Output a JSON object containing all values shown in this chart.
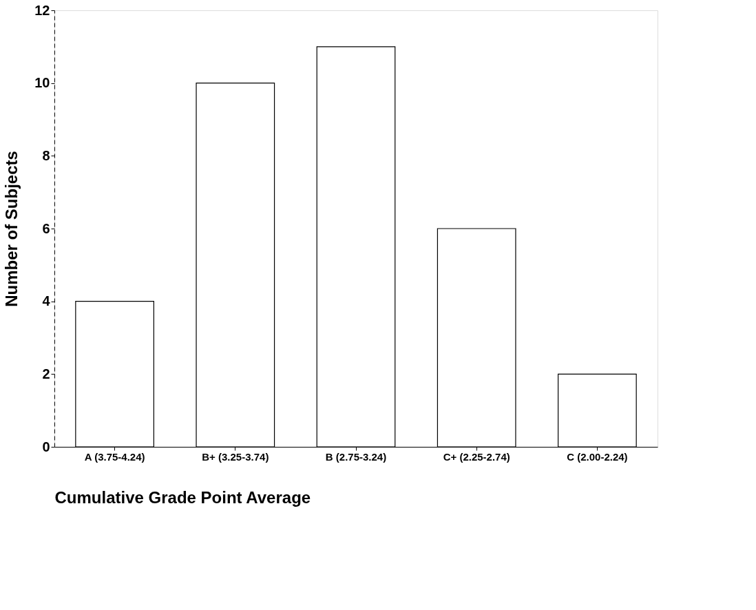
{
  "chart_data": {
    "type": "bar",
    "xlabel": "Cumulative Grade Point Average",
    "ylabel": "Number of Subjects",
    "categories": [
      "A (3.75-4.24)",
      "B+ (3.25-3.74)",
      "B (2.75-3.24)",
      "C+ (2.25-2.74)",
      "C (2.00-2.24)"
    ],
    "values": [
      4,
      10,
      11,
      6,
      2
    ],
    "color": "#ffffff",
    "ylim": [
      0,
      12
    ],
    "yticks": [
      0,
      2,
      4,
      6,
      8,
      10,
      12
    ],
    "grid": false
  }
}
